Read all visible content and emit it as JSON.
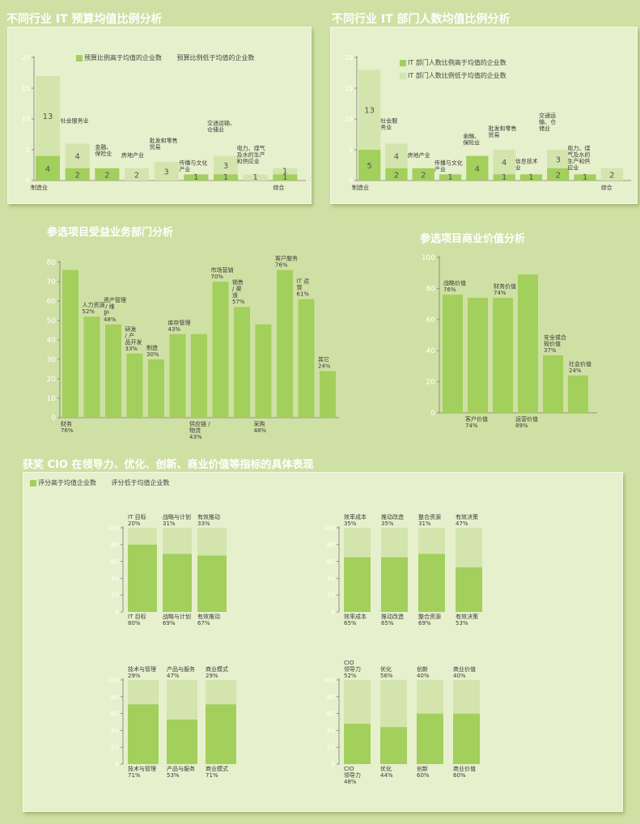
{
  "headers": {
    "budget": "不同行业 IT 预算均值比例分析",
    "staff": "不同行业 IT 部门人数均值比例分析",
    "dept": "参选项目受益业务部门分析",
    "value": "参选项目商业价值分析",
    "cio": "获奖 CIO 在领导力、优化、创新、商业价值等指标的具体表现"
  },
  "colors": {
    "dark": "#a3cf5c",
    "light": "#d3e5ad",
    "white": "#ffffff",
    "axis": "#7a7a7a"
  },
  "chart_data": [
    {
      "id": "budget",
      "type": "bar",
      "categories": [
        "制造业",
        "社会服务业",
        "金融、保险业",
        "房地产业",
        "批发和零售贸易",
        "传播与文化产业",
        "交通运输、仓储业",
        "电力、煤气及水的生产和供应业",
        "综合"
      ],
      "series": [
        {
          "name": "预算比例高于均值的企业数",
          "values": [
            4,
            2,
            2,
            0,
            0,
            1,
            1,
            0,
            1
          ]
        },
        {
          "name": "预算比例低于均值的企业数",
          "values": [
            13,
            4,
            0,
            2,
            3,
            0,
            3,
            1,
            1
          ]
        }
      ],
      "labels_low": [
        "4",
        "2",
        "2",
        "",
        "",
        "1",
        "1",
        "",
        "1"
      ],
      "labels_high": [
        "13",
        "4",
        "",
        "2",
        "3",
        "",
        "3",
        "1",
        "1"
      ],
      "yticks": [
        "0",
        "5",
        "10",
        "15",
        "20"
      ],
      "ylim": [
        0,
        20
      ]
    },
    {
      "id": "staff",
      "type": "bar",
      "categories": [
        "制造业",
        "社会服务业",
        "房地产业",
        "传播与文化产业",
        "金融、保险业",
        "批发和零售贸易",
        "信息技术业",
        "交通运输、仓储业",
        "电力、煤气及水的生产和供应业",
        "综合"
      ],
      "series": [
        {
          "name": "IT 部门人数比例高于均值的企业数",
          "values": [
            5,
            2,
            2,
            1,
            4,
            1,
            1,
            2,
            1,
            0
          ]
        },
        {
          "name": "IT 部门人数比例低于均值的企业数",
          "values": [
            13,
            4,
            0,
            0,
            0,
            4,
            0,
            3,
            0,
            2
          ]
        }
      ],
      "labels_low": [
        "5",
        "2",
        "2",
        "1",
        "4",
        "1",
        "1",
        "2",
        "1",
        ""
      ],
      "labels_high": [
        "13",
        "4",
        "",
        "",
        "",
        "4",
        "",
        "3",
        "",
        "2"
      ],
      "yticks": [
        "0",
        "5",
        "10",
        "15",
        "20"
      ],
      "ylim": [
        0,
        20
      ]
    },
    {
      "id": "dept",
      "type": "bar",
      "categories": [
        "财务",
        "人力资源",
        "资产管理 / 维护",
        "研发 / 产品开发",
        "制造",
        "库存管理",
        "供应链 / 物流",
        "市场营销",
        "销售 / 渠道",
        "采购",
        "客户服务",
        "IT 运营",
        "其它"
      ],
      "values": [
        76,
        52,
        48,
        33,
        30,
        43,
        43,
        70,
        57,
        48,
        76,
        61,
        24
      ],
      "yticks": [
        "0",
        "10",
        "20",
        "30",
        "40",
        "50",
        "60",
        "70",
        "80"
      ],
      "ylim": [
        0,
        80
      ]
    },
    {
      "id": "value",
      "type": "bar",
      "categories": [
        "战略价值",
        "客户价值",
        "财务价值",
        "运营价值",
        "安全或合规价值",
        "社会价值"
      ],
      "values": [
        76,
        74,
        74,
        89,
        37,
        24
      ],
      "yticks": [
        "0",
        "20",
        "40",
        "60",
        "80",
        "100"
      ],
      "ylim": [
        0,
        100
      ]
    },
    {
      "id": "cio1",
      "type": "bar",
      "categories": [
        "IT 目标",
        "战略与计划",
        "有效推动"
      ],
      "series": [
        {
          "name": "评分高于均值企业数",
          "values": [
            80,
            69,
            67
          ]
        },
        {
          "name": "评分低于均值企业数",
          "values": [
            20,
            31,
            33
          ]
        }
      ],
      "yticks": [
        "0",
        "20",
        "40",
        "60",
        "80",
        "100"
      ],
      "ylim": [
        0,
        100
      ]
    },
    {
      "id": "cio2",
      "type": "bar",
      "categories": [
        "效率成本",
        "推动改造",
        "整合资源",
        "有效决策"
      ],
      "series": [
        {
          "name": "评分高于均值企业数",
          "values": [
            65,
            65,
            69,
            53
          ]
        },
        {
          "name": "评分低于均值企业数",
          "values": [
            35,
            35,
            31,
            47
          ]
        }
      ],
      "yticks": [
        "0",
        "20",
        "40",
        "60",
        "80",
        "100"
      ],
      "ylim": [
        0,
        100
      ]
    },
    {
      "id": "cio3",
      "type": "bar",
      "categories": [
        "技术与管理",
        "产品与服务",
        "商业模式"
      ],
      "series": [
        {
          "name": "评分高于均值企业数",
          "values": [
            71,
            53,
            71
          ]
        },
        {
          "name": "评分低于均值企业数",
          "values": [
            29,
            47,
            29
          ]
        }
      ],
      "yticks": [
        "0",
        "20",
        "40",
        "60",
        "80",
        "100"
      ],
      "ylim": [
        0,
        100
      ]
    },
    {
      "id": "cio4",
      "type": "bar",
      "categories": [
        "CIO 领导力",
        "优化",
        "创新",
        "商业价值"
      ],
      "series": [
        {
          "name": "评分高于均值企业数",
          "values": [
            48,
            44,
            60,
            60
          ]
        },
        {
          "name": "评分低于均值企业数",
          "values": [
            52,
            56,
            40,
            40
          ]
        }
      ],
      "yticks": [
        "0",
        "20",
        "40",
        "60",
        "80",
        "100"
      ],
      "ylim": [
        0,
        100
      ]
    }
  ]
}
